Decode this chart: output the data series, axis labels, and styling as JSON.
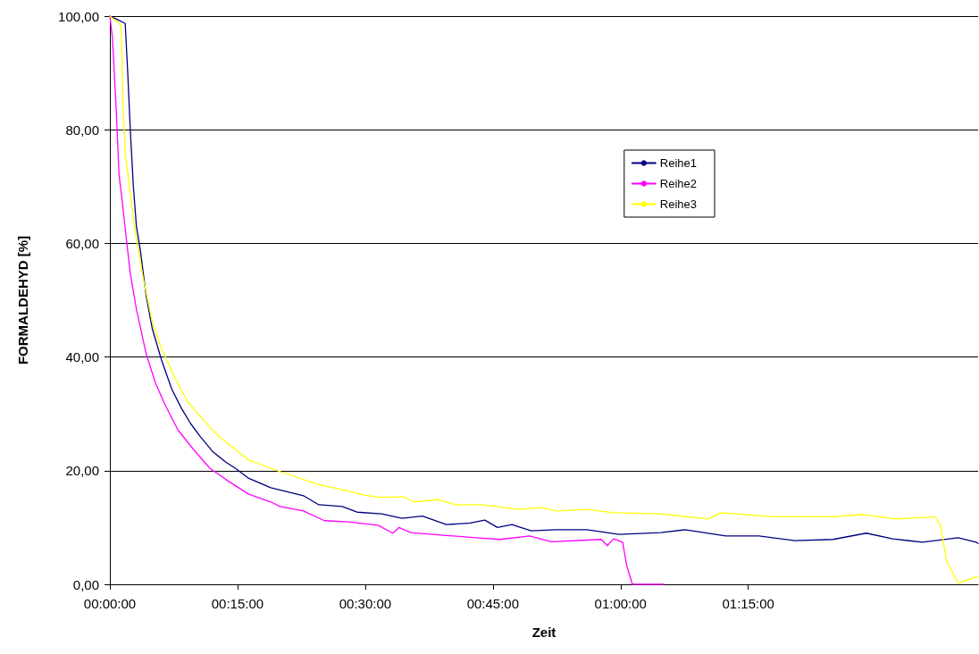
{
  "chart_data": {
    "type": "line",
    "xlabel": "Zeit",
    "ylabel": "FORMALDEHYD [%]",
    "xlim": [
      0,
      1.7
    ],
    "ylim": [
      0,
      100
    ],
    "xticks": [
      {
        "value": 0,
        "label": "00:00:00"
      },
      {
        "value": 0.25,
        "label": "00:15:00"
      },
      {
        "value": 0.5,
        "label": "00:30:00"
      },
      {
        "value": 0.75,
        "label": "00:45:00"
      },
      {
        "value": 1,
        "label": "01:00:00"
      },
      {
        "value": 1.25,
        "label": "01:15:00"
      }
    ],
    "yticks": [
      {
        "value": 0,
        "label": "0,00"
      },
      {
        "value": 20,
        "label": "20,00"
      },
      {
        "value": 40,
        "label": "40,00"
      },
      {
        "value": 60,
        "label": "60,00"
      },
      {
        "value": 80,
        "label": "80,00"
      },
      {
        "value": 100,
        "label": "100,00"
      }
    ],
    "grid": "y",
    "legend": "top right",
    "marker": "none",
    "line_style": "solid",
    "series": [
      {
        "name": "Reihe1",
        "color": "#000080",
        "x": [
          0,
          0.012,
          0.03,
          0.035,
          0.04,
          0.046,
          0.052,
          0.06,
          0.071,
          0.083,
          0.101,
          0.121,
          0.14,
          0.158,
          0.177,
          0.202,
          0.227,
          0.246,
          0.271,
          0.315,
          0.379,
          0.409,
          0.455,
          0.484,
          0.532,
          0.572,
          0.612,
          0.659,
          0.706,
          0.734,
          0.759,
          0.787,
          0.825,
          0.874,
          0.934,
          0.997,
          1.079,
          1.126,
          1.206,
          1.271,
          1.341,
          1.416,
          1.481,
          1.533,
          1.591,
          1.661,
          1.696,
          1.7
        ],
        "values": [
          100,
          99.5,
          98.7,
          90,
          80,
          70,
          63,
          58.6,
          50.8,
          45,
          39.5,
          34.4,
          31,
          28.3,
          26,
          23.3,
          21.5,
          20.4,
          18.7,
          17,
          15.6,
          14,
          13.7,
          12.7,
          12.4,
          11.6,
          12,
          10.5,
          10.8,
          11.3,
          10,
          10.5,
          9.4,
          9.6,
          9.6,
          8.8,
          9.1,
          9.6,
          8.5,
          8.5,
          7.7,
          7.9,
          9,
          8,
          7.4,
          8.2,
          7.4,
          7.2
        ]
      },
      {
        "name": "Reihe2",
        "color": "#ff00ff",
        "x": [
          0,
          0.005,
          0.012,
          0.018,
          0.024,
          0.033,
          0.04,
          0.052,
          0.071,
          0.089,
          0.108,
          0.133,
          0.164,
          0.196,
          0.233,
          0.271,
          0.315,
          0.333,
          0.379,
          0.42,
          0.467,
          0.525,
          0.554,
          0.566,
          0.589,
          0.659,
          0.717,
          0.764,
          0.822,
          0.864,
          0.962,
          0.974,
          0.986,
          1.004,
          1.012,
          1.023,
          1.084
        ],
        "values": [
          100,
          96.2,
          84.4,
          72,
          67.6,
          60.2,
          54.7,
          48.4,
          40.6,
          35.5,
          31.6,
          27.2,
          23.7,
          20.4,
          18.1,
          15.9,
          14.5,
          13.7,
          12.9,
          11.2,
          11,
          10.4,
          9,
          10,
          9.1,
          8.6,
          8.2,
          7.9,
          8.5,
          7.5,
          7.9,
          6.8,
          8,
          7.4,
          3.3,
          0,
          0
        ]
      },
      {
        "name": "Reihe3",
        "color": "#ffff00",
        "x": [
          0,
          0.018,
          0.022,
          0.026,
          0.03,
          0.04,
          0.049,
          0.065,
          0.083,
          0.101,
          0.128,
          0.152,
          0.184,
          0.215,
          0.246,
          0.271,
          0.315,
          0.351,
          0.407,
          0.467,
          0.497,
          0.532,
          0.577,
          0.594,
          0.642,
          0.677,
          0.729,
          0.799,
          0.846,
          0.874,
          0.934,
          0.986,
          1.079,
          1.171,
          1.196,
          1.301,
          1.416,
          1.476,
          1.539,
          1.615,
          1.626,
          1.638,
          1.661,
          1.696,
          1.7
        ],
        "values": [
          100,
          98.7,
          98.4,
          84.4,
          76,
          68.7,
          62.6,
          54,
          46.2,
          41.5,
          36.2,
          32.2,
          28.8,
          25.9,
          23.7,
          21.9,
          20.4,
          19.3,
          17.6,
          16.4,
          15.7,
          15.3,
          15.4,
          14.5,
          14.9,
          14,
          14,
          13.2,
          13.5,
          12.9,
          13.2,
          12.6,
          12.4,
          11.5,
          12.6,
          11.9,
          11.9,
          12.3,
          11.5,
          11.9,
          10.5,
          4.2,
          0.2,
          1.3,
          1.2
        ]
      }
    ]
  }
}
